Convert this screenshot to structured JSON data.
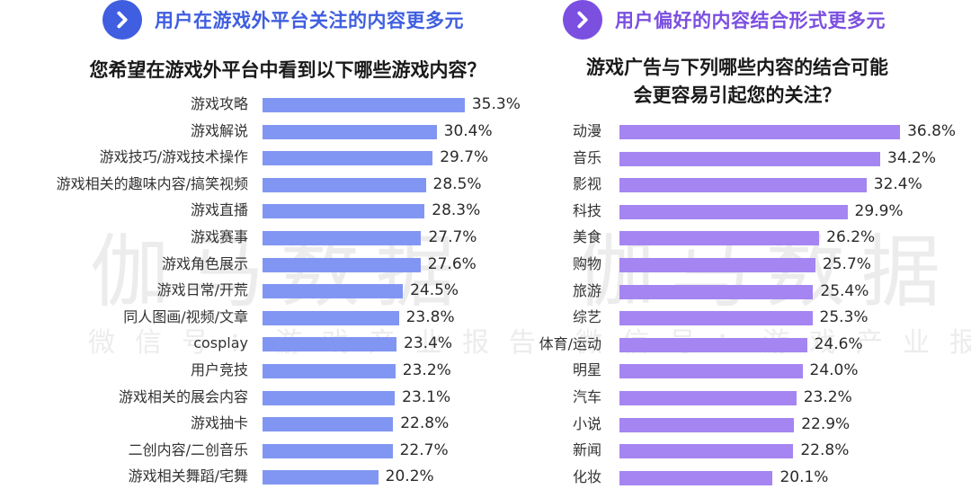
{
  "left": {
    "header": {
      "title": "用户在游戏外平台关注的内容更多元",
      "icon": "chevron-right-icon",
      "color": "#3f5ee0"
    },
    "question": "您希望在游戏外平台中看到以下哪些游戏内容？",
    "bar_color": "#8196f2",
    "items": [
      {
        "label": "游戏攻略",
        "value": "35.3%"
      },
      {
        "label": "游戏解说",
        "value": "30.4%"
      },
      {
        "label": "游戏技巧/游戏技术操作",
        "value": "29.7%"
      },
      {
        "label": "游戏相关的趣味内容/搞笑视频",
        "value": "28.5%"
      },
      {
        "label": "游戏直播",
        "value": "28.3%"
      },
      {
        "label": "游戏赛事",
        "value": "27.7%"
      },
      {
        "label": "游戏角色展示",
        "value": "27.6%"
      },
      {
        "label": "游戏日常/开荒",
        "value": "24.5%"
      },
      {
        "label": "同人图画/视频/文章",
        "value": "23.8%"
      },
      {
        "label": "cosplay",
        "value": "23.4%"
      },
      {
        "label": "用户竞技",
        "value": "23.2%"
      },
      {
        "label": "游戏相关的展会内容",
        "value": "23.1%"
      },
      {
        "label": "游戏抽卡",
        "value": "22.8%"
      },
      {
        "label": "二创内容/二创音乐",
        "value": "22.7%"
      },
      {
        "label": "游戏相关舞蹈/宅舞",
        "value": "20.2%"
      }
    ]
  },
  "right": {
    "header": {
      "title": "用户偏好的内容结合形式更多元",
      "icon": "chevron-right-icon",
      "color": "#7b4fe0"
    },
    "question_line1": "游戏广告与下列哪些内容的结合可能",
    "question_line2": "会更容易引起您的关注？",
    "bar_color": "#a585f2",
    "items": [
      {
        "label": "动漫",
        "value": "36.8%"
      },
      {
        "label": "音乐",
        "value": "34.2%"
      },
      {
        "label": "影视",
        "value": "32.4%"
      },
      {
        "label": "科技",
        "value": "29.9%"
      },
      {
        "label": "美食",
        "value": "26.2%"
      },
      {
        "label": "购物",
        "value": "25.7%"
      },
      {
        "label": "旅游",
        "value": "25.4%"
      },
      {
        "label": "综艺",
        "value": "25.3%"
      },
      {
        "label": "体育/运动",
        "value": "24.6%"
      },
      {
        "label": "明星",
        "value": "24.0%"
      },
      {
        "label": "汽车",
        "value": "23.2%"
      },
      {
        "label": "小说",
        "value": "22.9%"
      },
      {
        "label": "新闻",
        "value": "22.8%"
      },
      {
        "label": "化妆",
        "value": "20.1%"
      }
    ]
  },
  "watermark": {
    "big": "伽马数据",
    "small": "微信号：游戏产业报告"
  },
  "chart_data": [
    {
      "type": "bar",
      "orientation": "horizontal",
      "title": "您希望在游戏外平台中看到以下哪些游戏内容？",
      "subtitle": "用户在游戏外平台关注的内容更多元",
      "categories": [
        "游戏攻略",
        "游戏解说",
        "游戏技巧/游戏技术操作",
        "游戏相关的趣味内容/搞笑视频",
        "游戏直播",
        "游戏赛事",
        "游戏角色展示",
        "游戏日常/开荒",
        "同人图画/视频/文章",
        "cosplay",
        "用户竞技",
        "游戏相关的展会内容",
        "游戏抽卡",
        "二创内容/二创音乐",
        "游戏相关舞蹈/宅舞"
      ],
      "values": [
        35.3,
        30.4,
        29.7,
        28.5,
        28.3,
        27.7,
        27.6,
        24.5,
        23.8,
        23.4,
        23.2,
        23.1,
        22.8,
        22.7,
        20.2
      ],
      "unit": "%",
      "xlabel": "",
      "ylabel": "",
      "grid": false,
      "legend": "none",
      "color": "#8196f2"
    },
    {
      "type": "bar",
      "orientation": "horizontal",
      "title": "游戏广告与下列哪些内容的结合可能会更容易引起您的关注？",
      "subtitle": "用户偏好的内容结合形式更多元",
      "categories": [
        "动漫",
        "音乐",
        "影视",
        "科技",
        "美食",
        "购物",
        "旅游",
        "综艺",
        "体育/运动",
        "明星",
        "汽车",
        "小说",
        "新闻",
        "化妆"
      ],
      "values": [
        36.8,
        34.2,
        32.4,
        29.9,
        26.2,
        25.7,
        25.4,
        25.3,
        24.6,
        24.0,
        23.2,
        22.9,
        22.8,
        20.1
      ],
      "unit": "%",
      "xlabel": "",
      "ylabel": "",
      "grid": false,
      "legend": "none",
      "color": "#a585f2"
    }
  ]
}
